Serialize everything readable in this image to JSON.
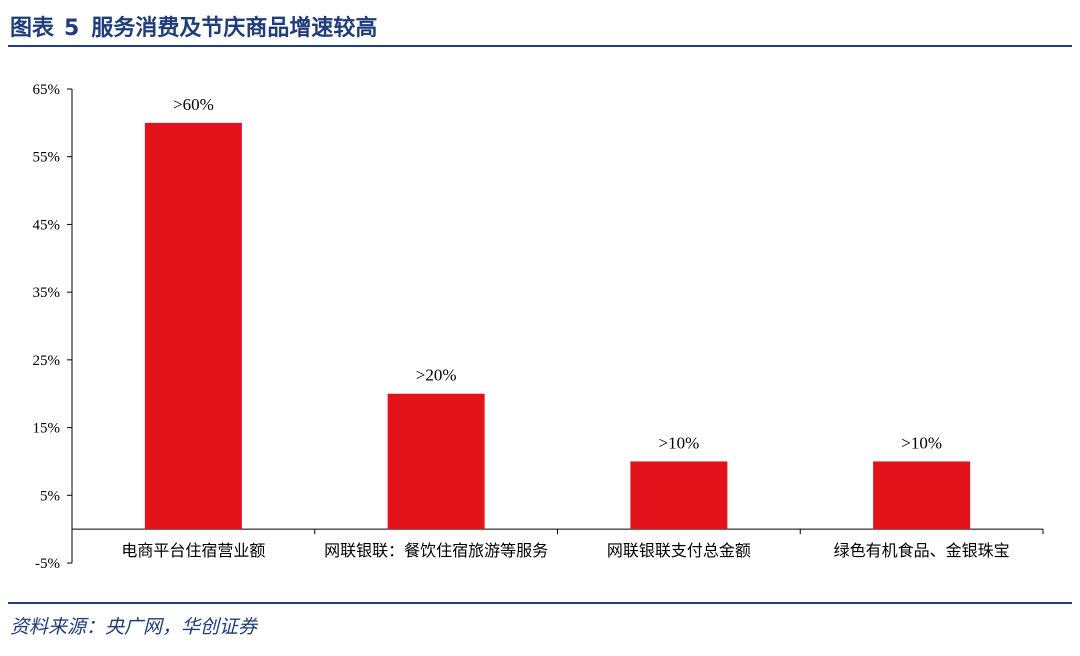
{
  "figure": {
    "title_prefix": "图表",
    "title_number": "5",
    "title_text": "服务消费及节庆商品增速较高",
    "source": "资料来源：央广网，华创证券"
  },
  "colors": {
    "bar": "#e3131b",
    "header": "#1f3d7a",
    "axis": "#000000"
  },
  "chart_data": {
    "type": "bar",
    "categories": [
      "电商平台住宿营业额",
      "网联银联：餐饮住宿旅游等服务",
      "网联银联支付总金额",
      "绿色有机食品、金银珠宝"
    ],
    "values": [
      60,
      20,
      10,
      10
    ],
    "data_labels": [
      ">60%",
      ">20%",
      ">10%",
      ">10%"
    ],
    "yticks": [
      65,
      55,
      45,
      35,
      25,
      15,
      5,
      -5
    ],
    "ytick_labels": [
      "65%",
      "55%",
      "45%",
      "35%",
      "25%",
      "15%",
      "5%",
      "-5%"
    ],
    "ylim": [
      -5,
      65
    ],
    "grid": false,
    "legend": "none"
  }
}
